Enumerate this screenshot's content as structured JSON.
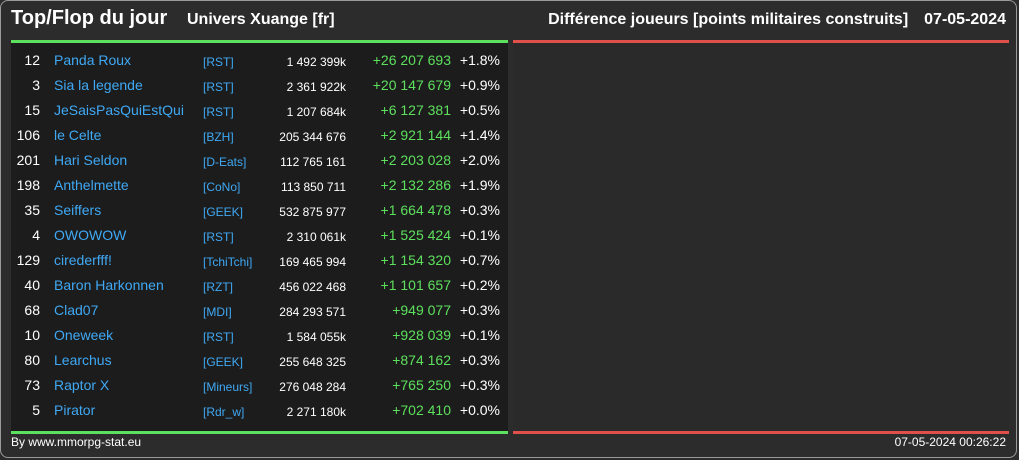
{
  "header": {
    "title": "Top/Flop du jour",
    "server": "Univers Xuange [fr]",
    "metric": "Différence joueurs [points militaires construits]",
    "date": "07-05-2024"
  },
  "colors": {
    "top_bar": "#5de05d",
    "flop_bar": "#e0504a",
    "name": "#3fa9f5",
    "gain": "#5de05d"
  },
  "top_rows": [
    {
      "rank": "12",
      "name": "Panda Roux",
      "alliance": "[RST]",
      "points": "1 492 399k",
      "diff": "+26 207 693",
      "pct": "+1.8%"
    },
    {
      "rank": "3",
      "name": "Sia la legende",
      "alliance": "[RST]",
      "points": "2 361 922k",
      "diff": "+20 147 679",
      "pct": "+0.9%"
    },
    {
      "rank": "15",
      "name": "JeSaisPasQuiEstQui",
      "alliance": "[RST]",
      "points": "1 207 684k",
      "diff": "+6 127 381",
      "pct": "+0.5%"
    },
    {
      "rank": "106",
      "name": "le Celte",
      "alliance": "[BZH]",
      "points": "205 344 676",
      "diff": "+2 921 144",
      "pct": "+1.4%"
    },
    {
      "rank": "201",
      "name": "Hari Seldon",
      "alliance": "[D-Eats]",
      "points": "112 765 161",
      "diff": "+2 203 028",
      "pct": "+2.0%"
    },
    {
      "rank": "198",
      "name": "Anthelmette",
      "alliance": "[CoNo]",
      "points": "113 850 711",
      "diff": "+2 132 286",
      "pct": "+1.9%"
    },
    {
      "rank": "35",
      "name": "Seiffers",
      "alliance": "[GEEK]",
      "points": "532 875 977",
      "diff": "+1 664 478",
      "pct": "+0.3%"
    },
    {
      "rank": "4",
      "name": "OWOWOW",
      "alliance": "[RST]",
      "points": "2 310 061k",
      "diff": "+1 525 424",
      "pct": "+0.1%"
    },
    {
      "rank": "129",
      "name": "cirederfff!",
      "alliance": "[TchiTchi]",
      "points": "169 465 994",
      "diff": "+1 154 320",
      "pct": "+0.7%"
    },
    {
      "rank": "40",
      "name": "Baron Harkonnen",
      "alliance": "[RZT]",
      "points": "456 022 468",
      "diff": "+1 101 657",
      "pct": "+0.2%"
    },
    {
      "rank": "68",
      "name": "Clad07",
      "alliance": "[MDI]",
      "points": "284 293 571",
      "diff": "+949 077",
      "pct": "+0.3%"
    },
    {
      "rank": "10",
      "name": "Oneweek",
      "alliance": "[RST]",
      "points": "1 584 055k",
      "diff": "+928 039",
      "pct": "+0.1%"
    },
    {
      "rank": "80",
      "name": "Learchus",
      "alliance": "[GEEK]",
      "points": "255 648 325",
      "diff": "+874 162",
      "pct": "+0.3%"
    },
    {
      "rank": "73",
      "name": "Raptor X",
      "alliance": "[Mineurs]",
      "points": "276 048 284",
      "diff": "+765 250",
      "pct": "+0.3%"
    },
    {
      "rank": "5",
      "name": "Pirator",
      "alliance": "[Rdr_w]",
      "points": "2 271 180k",
      "diff": "+702 410",
      "pct": "+0.0%"
    }
  ],
  "footer": {
    "credit": "By www.mmorpg-stat.eu",
    "timestamp": "07-05-2024 00:26:22"
  }
}
